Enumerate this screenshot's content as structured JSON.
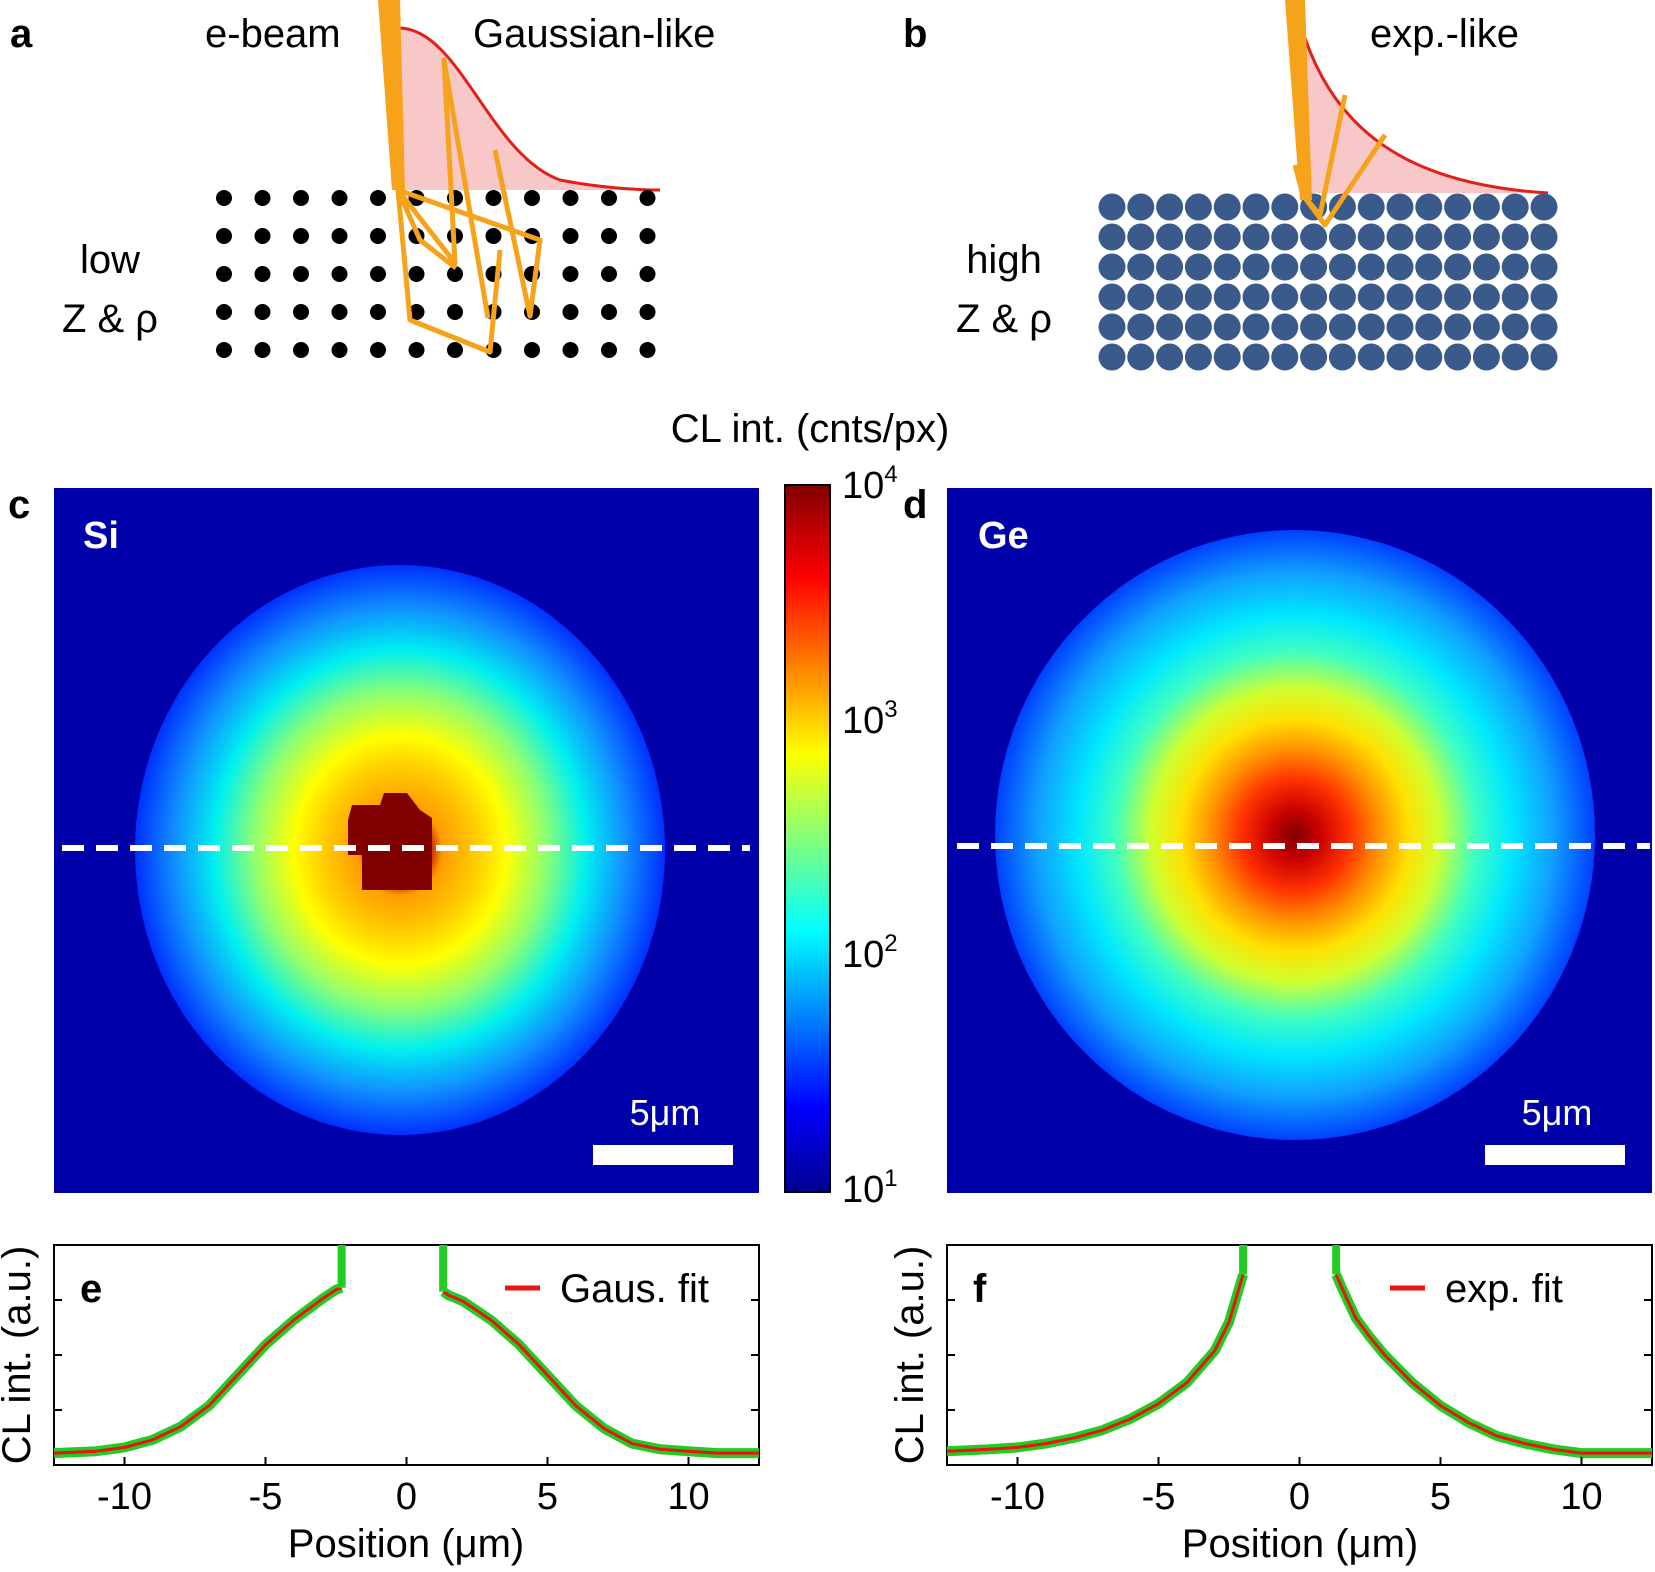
{
  "panels": {
    "a": {
      "letter": "a",
      "beam_label": "e-beam",
      "profile_label": "Gaussian-like",
      "material_line1": "low",
      "material_line2": "Z & ρ"
    },
    "b": {
      "letter": "b",
      "profile_label": "exp.-like",
      "material_line1": "high",
      "material_line2": "Z & ρ"
    },
    "c": {
      "letter": "c",
      "sample": "Si",
      "scale_bar": "5μm"
    },
    "d": {
      "letter": "d",
      "sample": "Ge",
      "scale_bar": "5μm"
    },
    "e": {
      "letter": "e",
      "legend": "Gaus. fit"
    },
    "f": {
      "letter": "f",
      "legend": "exp. fit"
    }
  },
  "colorbar": {
    "title": "CL int. (cnts/px)",
    "tick_base": "10",
    "tick_exponents": [
      "4",
      "3",
      "2",
      "1"
    ]
  },
  "colors": {
    "map_background": "#0000aa",
    "beam": "#f7a21b",
    "profile_line": "#e0201a",
    "profile_fill": "#f8c8c8",
    "low_z_atoms": "#000000",
    "high_z_atoms": "#3a5a8c",
    "data_line": "#22cc22",
    "fit_line": "#ee1111"
  },
  "chart_data": [
    {
      "type": "heatmap",
      "panel": "c",
      "title": "Si",
      "colorbar_label": "CL int. (cnts/px)",
      "color_scale": "log",
      "clim": [
        10,
        10000
      ],
      "profile": "Gaussian-like",
      "peak_position": [
        0,
        0
      ],
      "scale_bar_um": 5
    },
    {
      "type": "heatmap",
      "panel": "d",
      "title": "Ge",
      "colorbar_label": "CL int. (cnts/px)",
      "color_scale": "log",
      "clim": [
        10,
        10000
      ],
      "profile": "exp.-like",
      "peak_position": [
        0,
        0
      ],
      "scale_bar_um": 5
    },
    {
      "type": "line",
      "panel": "e",
      "xlabel": "Position (μm)",
      "ylabel": "CL int. (a.u.)",
      "xlim": [
        -12.5,
        12.5
      ],
      "ylim": [
        0,
        1
      ],
      "xticks": [
        -10,
        -5,
        0,
        5,
        10
      ],
      "series": [
        {
          "name": "",
          "x": [
            -12.5,
            -11,
            -10,
            -9,
            -8,
            -7,
            -6,
            -5,
            -4,
            -3,
            -2.5,
            -2.3,
            1.3,
            1.5,
            2,
            3,
            4,
            5,
            6,
            7,
            8,
            9,
            10,
            11,
            12.5
          ],
          "y": [
            0.01,
            0.02,
            0.04,
            0.08,
            0.15,
            0.26,
            0.42,
            0.58,
            0.71,
            0.82,
            0.87,
            0.88,
            0.86,
            0.84,
            0.81,
            0.71,
            0.58,
            0.42,
            0.26,
            0.14,
            0.06,
            0.03,
            0.02,
            0.01,
            0.01
          ]
        },
        {
          "name": "Gaus. fit",
          "x": [
            -12.5,
            -11,
            -10,
            -9,
            -8,
            -7,
            -6,
            -5,
            -4,
            -3,
            -2.5,
            -2.3,
            1.3,
            1.5,
            2,
            3,
            4,
            5,
            6,
            7,
            8,
            9,
            10,
            11,
            12.5
          ],
          "y": [
            0.01,
            0.02,
            0.04,
            0.08,
            0.15,
            0.26,
            0.42,
            0.58,
            0.71,
            0.82,
            0.87,
            0.88,
            0.86,
            0.84,
            0.81,
            0.71,
            0.58,
            0.42,
            0.26,
            0.14,
            0.06,
            0.03,
            0.02,
            0.01,
            0.01
          ]
        }
      ]
    },
    {
      "type": "line",
      "panel": "f",
      "xlabel": "Position (μm)",
      "ylabel": "CL int. (a.u.)",
      "xlim": [
        -12.5,
        12.5
      ],
      "ylim": [
        0,
        1
      ],
      "xticks": [
        -10,
        -5,
        0,
        5,
        10
      ],
      "series": [
        {
          "name": "",
          "x": [
            -12.5,
            -11,
            -10,
            -9,
            -8,
            -7,
            -6,
            -5,
            -4,
            -3,
            -2.5,
            -2,
            1.3,
            1.5,
            2,
            2.5,
            3,
            4,
            5,
            6,
            7,
            8,
            9,
            10,
            11,
            12.5
          ],
          "y": [
            0.02,
            0.03,
            0.04,
            0.06,
            0.09,
            0.13,
            0.19,
            0.27,
            0.38,
            0.55,
            0.7,
            0.95,
            0.95,
            0.88,
            0.72,
            0.62,
            0.53,
            0.38,
            0.26,
            0.17,
            0.1,
            0.06,
            0.03,
            0.01,
            0.01,
            0.01
          ]
        },
        {
          "name": "exp. fit",
          "x": [
            -12.5,
            -11,
            -10,
            -9,
            -8,
            -7,
            -6,
            -5,
            -4,
            -3,
            -2.5,
            -2,
            1.3,
            1.5,
            2,
            2.5,
            3,
            4,
            5,
            6,
            7,
            8,
            9,
            10,
            11,
            12.5
          ],
          "y": [
            0.02,
            0.03,
            0.04,
            0.06,
            0.09,
            0.13,
            0.19,
            0.27,
            0.38,
            0.55,
            0.7,
            0.95,
            0.95,
            0.88,
            0.72,
            0.62,
            0.53,
            0.38,
            0.26,
            0.17,
            0.1,
            0.06,
            0.03,
            0.01,
            0.01,
            0.01
          ]
        }
      ]
    }
  ]
}
